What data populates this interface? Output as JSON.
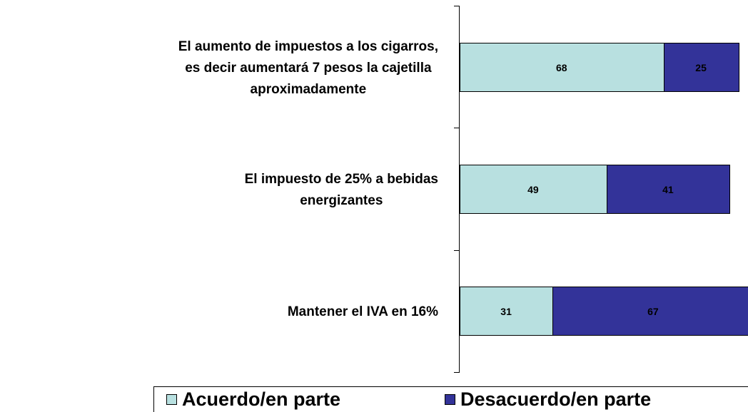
{
  "chart_data": {
    "type": "stacked-bar-horizontal",
    "categories": [
      "El aumento de impuestos a los cigarros,\nes decir aumentará 7 pesos la cajetilla\naproximadamente",
      "El impuesto de 25% a bebidas\nenergizantes",
      "Mantener el IVA en 16%"
    ],
    "series": [
      {
        "name": "Acuerdo/en parte",
        "color": "#b8e0e0",
        "values": [
          68,
          49,
          31
        ]
      },
      {
        "name": "Desacuerdo/en parte",
        "color": "#333399",
        "values": [
          25,
          41,
          67
        ]
      }
    ],
    "xlim": [
      0,
      100
    ],
    "legend": "bottom"
  }
}
